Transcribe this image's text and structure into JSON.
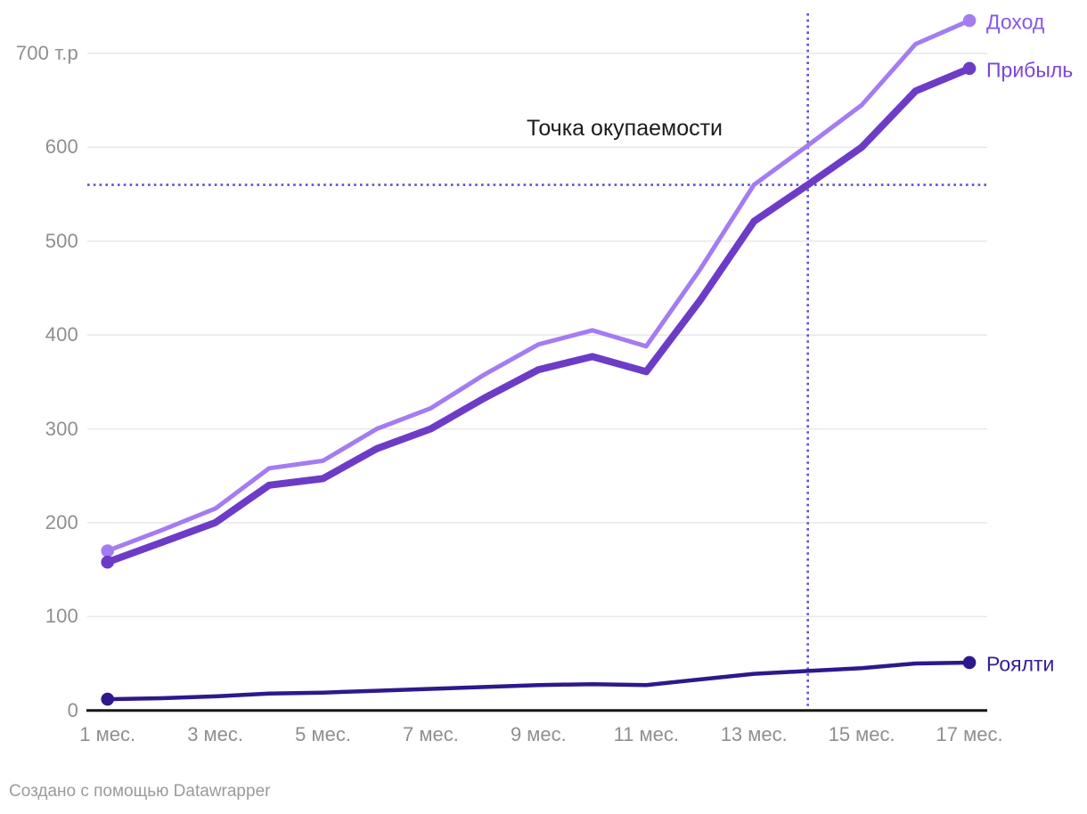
{
  "annotation": {
    "text": "Точка окупаемости"
  },
  "footer": {
    "credit": "Создано с помощью Datawrapper"
  },
  "axis": {
    "tick_color": "#8f8f8f",
    "grid_color": "#e9e9e9",
    "axis_line_color": "#161616"
  },
  "chart_data": {
    "type": "line",
    "title": "",
    "xlabel": "",
    "ylabel": "т.р",
    "x": [
      1,
      2,
      3,
      4,
      5,
      6,
      7,
      8,
      9,
      10,
      11,
      12,
      13,
      14,
      15,
      16,
      17
    ],
    "x_tick_months": [
      1,
      3,
      5,
      7,
      9,
      11,
      13,
      15,
      17
    ],
    "x_tick_labels": [
      "1 мес.",
      "3 мес.",
      "5 мес.",
      "7 мес.",
      "9 мес.",
      "11 мес.",
      "13 мес.",
      "15 мес.",
      "17 мес."
    ],
    "y_ticks": [
      0,
      100,
      200,
      300,
      400,
      500,
      600,
      700
    ],
    "y_tick_labels": [
      "0",
      "100",
      "200",
      "300",
      "400",
      "500",
      "600",
      "700 т.р"
    ],
    "ylim": [
      0,
      740
    ],
    "grid": true,
    "legend_position": "labels-at-line-ends-right",
    "series": [
      {
        "name": "Доход",
        "color": "#a47cf2",
        "label_color": "#8757ee",
        "line_width": 5,
        "values": [
          170,
          192,
          215,
          258,
          266,
          300,
          322,
          358,
          390,
          405,
          388,
          470,
          560,
          602,
          645,
          710,
          735
        ]
      },
      {
        "name": "Прибыль",
        "color": "#6d3cc6",
        "label_color": "#7a45da",
        "line_width": 8,
        "values": [
          158,
          179,
          200,
          240,
          247,
          279,
          300,
          333,
          363,
          377,
          361,
          437,
          521,
          560,
          600,
          660,
          684
        ]
      },
      {
        "name": "Роялти",
        "color": "#2f188c",
        "label_color": "#31209a",
        "line_width": 4.5,
        "values": [
          12,
          13,
          15,
          18,
          19,
          21,
          23,
          25,
          27,
          28,
          27,
          33,
          39,
          42,
          45,
          50,
          51
        ]
      }
    ],
    "break_even": {
      "label": "Точка окупаемости",
      "month": 14,
      "value": 560,
      "line_color": "#5a50d6",
      "line_style": "dotted"
    }
  }
}
